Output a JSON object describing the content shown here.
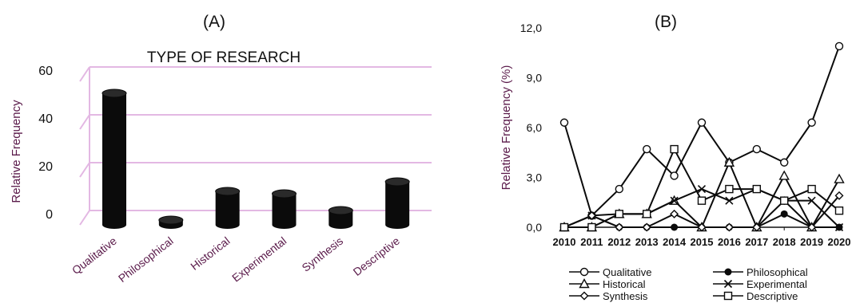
{
  "panel_a_label": "(A)",
  "panel_b_label": "(B)",
  "chart_data": [
    {
      "type": "bar",
      "title": "TYPE OF RESEARCH",
      "ylabel": "Relative Frequency",
      "xlabel": "",
      "categories": [
        "Qualitative",
        "Philosophical",
        "Historical",
        "Experimental",
        "Synthesis",
        "Descriptive"
      ],
      "values": [
        55,
        2,
        14,
        13,
        6,
        18
      ],
      "ylim": [
        0,
        60
      ],
      "yticks": [
        0,
        20,
        40,
        60
      ],
      "grid": true,
      "colors": {
        "bar": "#0b0b0b",
        "grid": "#e3b8e3",
        "text": "#5a1a4a"
      }
    },
    {
      "type": "line",
      "title": "",
      "ylabel": "Relative Frequency (%)",
      "xlabel": "",
      "x": [
        "2010",
        "2011",
        "2012",
        "2013",
        "2014",
        "2015",
        "2016",
        "2017",
        "2018",
        "2019",
        "2020"
      ],
      "ylim": [
        0,
        12
      ],
      "yticks": [
        "0,0",
        "3,0",
        "6,0",
        "9,0",
        "12,0"
      ],
      "grid": false,
      "legend_position": "bottom",
      "series": [
        {
          "name": "Qualitative",
          "marker": "circle-open",
          "values": [
            6.3,
            0.7,
            2.3,
            4.7,
            3.1,
            6.3,
            3.9,
            4.7,
            3.9,
            6.3,
            10.9
          ]
        },
        {
          "name": "Philosophical",
          "marker": "circle-filled",
          "values": [
            0,
            0.7,
            0,
            0,
            0,
            0,
            0,
            0,
            0.8,
            0,
            0
          ]
        },
        {
          "name": "Historical",
          "marker": "triangle",
          "values": [
            0,
            0,
            0.8,
            0.8,
            1.6,
            0,
            3.9,
            0,
            3.1,
            0,
            2.9
          ]
        },
        {
          "name": "Experimental",
          "marker": "x",
          "values": [
            0,
            0.7,
            0.8,
            0.8,
            1.6,
            2.3,
            1.6,
            2.3,
            1.6,
            1.6,
            0
          ]
        },
        {
          "name": "Synthesis",
          "marker": "diamond",
          "values": [
            0,
            0.7,
            0,
            0,
            0.8,
            0,
            0,
            0,
            1.6,
            0,
            1.9
          ]
        },
        {
          "name": "Descriptive",
          "marker": "square",
          "values": [
            0,
            0,
            0.8,
            0.8,
            4.7,
            1.6,
            2.3,
            2.3,
            1.6,
            2.3,
            1.0
          ]
        }
      ],
      "colors": {
        "line": "#0b0b0b",
        "text": "#5a1a4a"
      }
    }
  ]
}
